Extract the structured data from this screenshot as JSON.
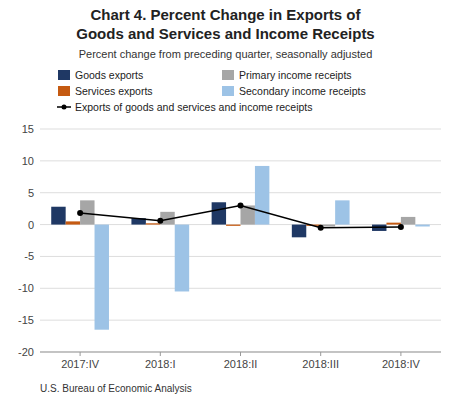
{
  "chart_data": {
    "type": "bar",
    "title": [
      "Chart 4. Percent Change in Exports of",
      "Goods and Services and Income Receipts"
    ],
    "subtitle": "Percent change from preceding quarter, seasonally adjusted",
    "footnote": "U.S. Bureau of Economic Analysis",
    "categories": [
      "2017:IV",
      "2018:I",
      "2018:II",
      "2018:III",
      "2018:IV"
    ],
    "series": [
      {
        "name": "Goods exports",
        "color": "#1f3864",
        "values": [
          2.8,
          1.0,
          3.5,
          -2.0,
          -1.0
        ]
      },
      {
        "name": "Services exports",
        "color": "#c55a11",
        "values": [
          0.5,
          0.2,
          -0.2,
          -0.2,
          0.3
        ]
      },
      {
        "name": "Primary income receipts",
        "color": "#a6a6a6",
        "values": [
          3.8,
          2.0,
          3.0,
          -0.3,
          1.2
        ]
      },
      {
        "name": "Secondary income receipts",
        "color": "#9dc3e6",
        "values": [
          -16.5,
          -10.5,
          9.2,
          3.8,
          -0.3
        ]
      },
      {
        "name": "Exports of goods and services and income receipts",
        "type": "line",
        "marker": "circle",
        "color": "#000000",
        "values": [
          1.8,
          0.6,
          3.0,
          -0.5,
          -0.4
        ]
      }
    ],
    "ylim": [
      -20,
      15
    ],
    "yticks": [
      -20,
      -15,
      -10,
      -5,
      0,
      5,
      10,
      15
    ],
    "grid": true,
    "legend": "top"
  }
}
